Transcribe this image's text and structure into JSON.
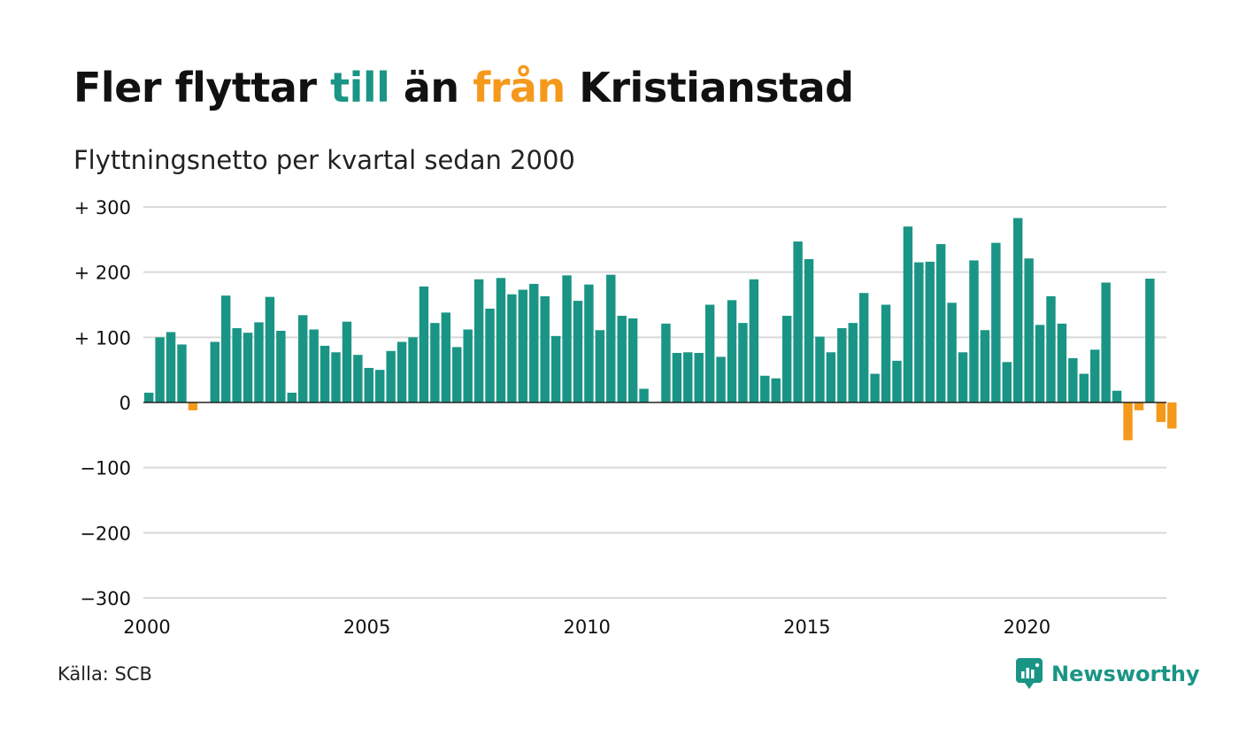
{
  "title": {
    "part1": "Fler flyttar ",
    "in": "till",
    "part2": " än ",
    "out": "från",
    "part3": " Kristianstad"
  },
  "subtitle": "Flyttningsnetto per kvartal sedan 2000",
  "source": "Källa: SCB",
  "logo": "Newsworthy",
  "colors": {
    "positive": "#1a9585",
    "negative": "#f5991c",
    "grid": "#d9d9d9",
    "zero": "#222222"
  },
  "chart_data": {
    "type": "bar",
    "title": "Fler flyttar till än från Kristianstad",
    "subtitle": "Flyttningsnetto per kvartal sedan 2000",
    "x_start": 2000,
    "x_step": 0.25,
    "xlim": [
      2000,
      2023.25
    ],
    "ylim": [
      -300,
      300
    ],
    "yticks": [
      300,
      200,
      100,
      0,
      -100,
      -200,
      -300
    ],
    "ytick_labels": [
      "+ 300",
      "+ 200",
      "+ 100",
      "0",
      "−100",
      "−200",
      "−300"
    ],
    "xticks": [
      2000,
      2005,
      2010,
      2015,
      2020
    ],
    "xtick_labels": [
      "2000",
      "2005",
      "2010",
      "2015",
      "2020"
    ],
    "grid": true,
    "values": [
      15,
      100,
      108,
      89,
      -12,
      0,
      93,
      164,
      114,
      107,
      123,
      162,
      110,
      15,
      134,
      112,
      87,
      77,
      124,
      73,
      53,
      50,
      79,
      93,
      100,
      178,
      122,
      138,
      85,
      112,
      189,
      144,
      191,
      166,
      173,
      182,
      163,
      102,
      195,
      156,
      181,
      111,
      196,
      133,
      129,
      21,
      0,
      121,
      76,
      77,
      76,
      150,
      70,
      157,
      122,
      189,
      41,
      37,
      133,
      247,
      220,
      101,
      77,
      114,
      122,
      168,
      44,
      150,
      64,
      270,
      215,
      216,
      243,
      153,
      77,
      218,
      111,
      245,
      62,
      283,
      221,
      119,
      163,
      121,
      68,
      44,
      81,
      184,
      18,
      -58,
      -12,
      190,
      -30,
      -40
    ]
  }
}
